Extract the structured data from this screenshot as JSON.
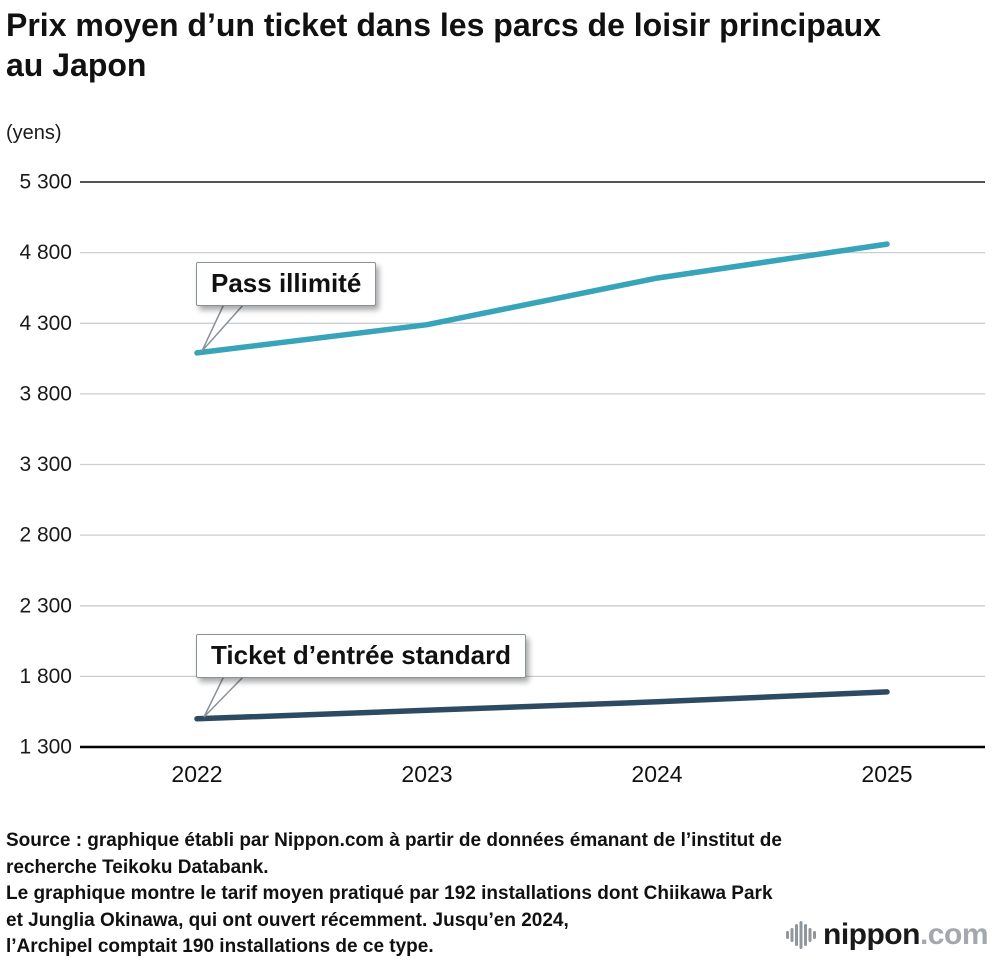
{
  "title": "Prix moyen d’un ticket dans les parcs de loisir principaux au Japon",
  "unit_label": "(yens)",
  "chart_data": {
    "type": "line",
    "title": "Prix moyen d’un ticket dans les parcs de loisir principaux au Japon",
    "unit": "(yens)",
    "x": [
      "2022",
      "2023",
      "2024",
      "2025"
    ],
    "ylim": [
      1300,
      5300
    ],
    "yticks": [
      1300,
      1800,
      2300,
      2800,
      3300,
      3800,
      4300,
      4800,
      5300
    ],
    "ytick_labels": [
      "1 300",
      "1 800",
      "2 300",
      "2 800",
      "3 300",
      "3 800",
      "4 300",
      "4 800",
      "5 300"
    ],
    "grid": "horizontal",
    "legend": "inline-callouts",
    "series": [
      {
        "name": "Pass illimité",
        "color": "#38a4b9",
        "values": [
          4090,
          4290,
          4620,
          4860
        ]
      },
      {
        "name": "Ticket d’entrée standard",
        "color": "#2d4a63",
        "values": [
          1500,
          1560,
          1620,
          1690
        ]
      }
    ]
  },
  "source": {
    "lines": [
      "Source : graphique établi par Nippon.com à partir de données émanant de l’institut de",
      "recherche Teikoku Databank.",
      "Le graphique montre le tarif moyen pratiqué par 192 installations dont Chiikawa Park",
      "et Junglia Okinawa, qui ont ouvert récemment. Jusqu’en 2024,",
      "l’Archipel comptait 190 installations de ce type."
    ]
  },
  "logo": {
    "name": "nippon",
    "tld": ".com"
  }
}
